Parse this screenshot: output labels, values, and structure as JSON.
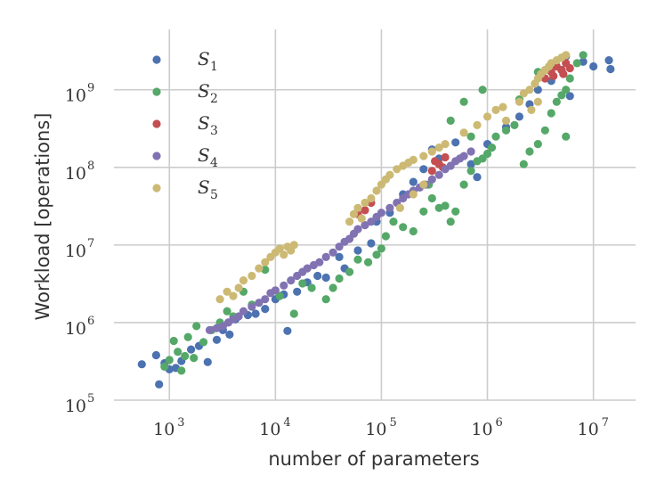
{
  "chart_data": {
    "type": "scatter",
    "xlabel": "number of parameters",
    "ylabel": "Workload [operations]",
    "xscale": "log",
    "yscale": "log",
    "xlim": [
      300,
      25000000
    ],
    "ylim": [
      100000,
      6000000000
    ],
    "x_ticks": [
      {
        "base": "10",
        "exp": "3"
      },
      {
        "base": "10",
        "exp": "4"
      },
      {
        "base": "10",
        "exp": "5"
      },
      {
        "base": "10",
        "exp": "6"
      },
      {
        "base": "10",
        "exp": "7"
      }
    ],
    "y_ticks": [
      {
        "base": "10",
        "exp": "5"
      },
      {
        "base": "10",
        "exp": "6"
      },
      {
        "base": "10",
        "exp": "7"
      },
      {
        "base": "10",
        "exp": "8"
      },
      {
        "base": "10",
        "exp": "9"
      }
    ],
    "grid": true,
    "legend_position": "top-left",
    "series": [
      {
        "name": "S",
        "sub": "1",
        "color": "#4c72b0",
        "points": [
          [
            550,
            290000
          ],
          [
            750,
            380000
          ],
          [
            800,
            160000
          ],
          [
            900,
            300000
          ],
          [
            1000,
            250000
          ],
          [
            1150,
            260000
          ],
          [
            1300,
            320000
          ],
          [
            1600,
            450000
          ],
          [
            1900,
            500000
          ],
          [
            2300,
            310000
          ],
          [
            2800,
            600000
          ],
          [
            3200,
            800000
          ],
          [
            3700,
            700000
          ],
          [
            4200,
            1100000
          ],
          [
            5500,
            1250000
          ],
          [
            6500,
            1300000
          ],
          [
            8000,
            1500000
          ],
          [
            10000,
            2000000
          ],
          [
            12000,
            2300000
          ],
          [
            13000,
            780000
          ],
          [
            16000,
            2500000
          ],
          [
            20000,
            3300000
          ],
          [
            25000,
            4000000
          ],
          [
            30000,
            3800000
          ],
          [
            40000,
            7000000
          ],
          [
            45000,
            5000000
          ],
          [
            60000,
            8500000
          ],
          [
            80000,
            10500000
          ],
          [
            90000,
            20000000
          ],
          [
            120000,
            26000000
          ],
          [
            160000,
            45000000
          ],
          [
            200000,
            65000000
          ],
          [
            250000,
            95000000
          ],
          [
            300000,
            170000000
          ],
          [
            350000,
            130000000
          ],
          [
            500000,
            210000000
          ],
          [
            700000,
            110000000
          ],
          [
            800000,
            75000000
          ],
          [
            1000000,
            200000000
          ],
          [
            1500000,
            330000000
          ],
          [
            2000000,
            450000000
          ],
          [
            2500000,
            650000000
          ],
          [
            3000000,
            1000000000
          ],
          [
            4000000,
            1300000000
          ],
          [
            5000000,
            1800000000
          ],
          [
            5500000,
            2700000000
          ],
          [
            6000000,
            830000000
          ],
          [
            8000000,
            2300000000
          ],
          [
            10000000,
            2000000000
          ],
          [
            14000000,
            2400000000
          ],
          [
            14500000,
            1850000000
          ]
        ]
      },
      {
        "name": "S",
        "sub": "2",
        "color": "#55a868",
        "points": [
          [
            900,
            270000
          ],
          [
            1000,
            330000
          ],
          [
            1100,
            580000
          ],
          [
            1200,
            420000
          ],
          [
            1300,
            240000
          ],
          [
            1400,
            370000
          ],
          [
            1500,
            650000
          ],
          [
            1700,
            350000
          ],
          [
            1800,
            900000
          ],
          [
            2100,
            560000
          ],
          [
            2500,
            800000
          ],
          [
            3000,
            1000000
          ],
          [
            3500,
            1400000
          ],
          [
            4000,
            1200000
          ],
          [
            5000,
            2500000
          ],
          [
            6000,
            1700000
          ],
          [
            8000,
            4800000
          ],
          [
            11000,
            2200000
          ],
          [
            15000,
            1300000
          ],
          [
            18000,
            3200000
          ],
          [
            22000,
            2800000
          ],
          [
            30000,
            2000000
          ],
          [
            35000,
            2800000
          ],
          [
            40000,
            3700000
          ],
          [
            50000,
            4500000
          ],
          [
            60000,
            6500000
          ],
          [
            75000,
            6000000
          ],
          [
            90000,
            7500000
          ],
          [
            100000,
            9000000
          ],
          [
            110000,
            13000000
          ],
          [
            130000,
            20000000
          ],
          [
            160000,
            17000000
          ],
          [
            200000,
            15000000
          ],
          [
            250000,
            27000000
          ],
          [
            280000,
            60000000
          ],
          [
            300000,
            40000000
          ],
          [
            350000,
            30000000
          ],
          [
            400000,
            32000000
          ],
          [
            450000,
            20000000
          ],
          [
            500000,
            27000000
          ],
          [
            600000,
            60000000
          ],
          [
            700000,
            90000000
          ],
          [
            800000,
            120000000
          ],
          [
            900000,
            130000000
          ],
          [
            1000000,
            150000000
          ],
          [
            1100000,
            180000000
          ],
          [
            1200000,
            250000000
          ],
          [
            1500000,
            300000000
          ],
          [
            1800000,
            350000000
          ],
          [
            2200000,
            110000000
          ],
          [
            2500000,
            160000000
          ],
          [
            3000000,
            200000000
          ],
          [
            3500000,
            300000000
          ],
          [
            4000000,
            500000000
          ],
          [
            4500000,
            700000000
          ],
          [
            5000000,
            850000000
          ],
          [
            5500000,
            1000000000
          ],
          [
            6000000,
            1400000000
          ],
          [
            7000000,
            2200000000
          ],
          [
            8000000,
            2800000000
          ],
          [
            5500000,
            250000000
          ],
          [
            900000,
            1000000000
          ],
          [
            600000,
            700000000
          ],
          [
            450000,
            400000000
          ],
          [
            700000,
            250000000
          ],
          [
            3000000,
            1700000000
          ],
          [
            2000000,
            750000000
          ]
        ]
      },
      {
        "name": "S",
        "sub": "3",
        "color": "#c44e52",
        "points": [
          [
            60000,
            25000000
          ],
          [
            70000,
            28000000
          ],
          [
            80000,
            35000000
          ],
          [
            300000,
            90000000
          ],
          [
            320000,
            120000000
          ],
          [
            350000,
            110000000
          ],
          [
            380000,
            100000000
          ],
          [
            400000,
            135000000
          ],
          [
            3500000,
            1400000000
          ],
          [
            4000000,
            1700000000
          ],
          [
            4200000,
            1500000000
          ],
          [
            4500000,
            2000000000
          ],
          [
            5000000,
            1800000000
          ],
          [
            5500000,
            2200000000
          ],
          [
            5200000,
            1600000000
          ],
          [
            6000000,
            1900000000
          ]
        ]
      },
      {
        "name": "S",
        "sub": "4",
        "color": "#8172b2",
        "points": [
          [
            2400,
            800000
          ],
          [
            2800,
            850000
          ],
          [
            3200,
            900000
          ],
          [
            3600,
            1000000
          ],
          [
            4000,
            1100000
          ],
          [
            4500,
            1200000
          ],
          [
            5000,
            1400000
          ],
          [
            6000,
            1600000
          ],
          [
            7000,
            1800000
          ],
          [
            8000,
            2000000
          ],
          [
            9000,
            2400000
          ],
          [
            10000,
            2600000
          ],
          [
            12000,
            3000000
          ],
          [
            14000,
            3500000
          ],
          [
            16000,
            4000000
          ],
          [
            18000,
            4500000
          ],
          [
            20000,
            5000000
          ],
          [
            23000,
            5500000
          ],
          [
            26000,
            6000000
          ],
          [
            30000,
            7000000
          ],
          [
            35000,
            8000000
          ],
          [
            40000,
            9500000
          ],
          [
            45000,
            11000000
          ],
          [
            50000,
            12000000
          ],
          [
            55000,
            14000000
          ],
          [
            60000,
            16000000
          ],
          [
            70000,
            18000000
          ],
          [
            80000,
            20000000
          ],
          [
            90000,
            23000000
          ],
          [
            100000,
            26000000
          ],
          [
            120000,
            30000000
          ],
          [
            140000,
            35000000
          ],
          [
            160000,
            40000000
          ],
          [
            180000,
            45000000
          ],
          [
            200000,
            50000000
          ],
          [
            230000,
            55000000
          ],
          [
            260000,
            60000000
          ],
          [
            300000,
            70000000
          ],
          [
            350000,
            80000000
          ],
          [
            400000,
            95000000
          ],
          [
            450000,
            105000000
          ],
          [
            500000,
            120000000
          ],
          [
            550000,
            130000000
          ],
          [
            600000,
            140000000
          ],
          [
            700000,
            160000000
          ]
        ]
      },
      {
        "name": "S",
        "sub": "5",
        "color": "#ccb974",
        "points": [
          [
            3000,
            2000000
          ],
          [
            3500,
            2500000
          ],
          [
            4000,
            2200000
          ],
          [
            4500,
            2800000
          ],
          [
            5000,
            3500000
          ],
          [
            6000,
            4000000
          ],
          [
            7000,
            5000000
          ],
          [
            8000,
            6000000
          ],
          [
            9000,
            7000000
          ],
          [
            10000,
            8000000
          ],
          [
            11000,
            9000000
          ],
          [
            12000,
            7500000
          ],
          [
            13000,
            9500000
          ],
          [
            14000,
            8500000
          ],
          [
            15000,
            10000000
          ],
          [
            50000,
            20000000
          ],
          [
            55000,
            25000000
          ],
          [
            60000,
            30000000
          ],
          [
            65000,
            22000000
          ],
          [
            70000,
            35000000
          ],
          [
            80000,
            40000000
          ],
          [
            90000,
            50000000
          ],
          [
            100000,
            60000000
          ],
          [
            110000,
            70000000
          ],
          [
            120000,
            80000000
          ],
          [
            140000,
            95000000
          ],
          [
            160000,
            105000000
          ],
          [
            180000,
            115000000
          ],
          [
            200000,
            125000000
          ],
          [
            250000,
            140000000
          ],
          [
            300000,
            160000000
          ],
          [
            350000,
            180000000
          ],
          [
            400000,
            200000000
          ],
          [
            150000,
            30000000
          ],
          [
            200000,
            45000000
          ],
          [
            250000,
            60000000
          ],
          [
            600000,
            280000000
          ],
          [
            800000,
            350000000
          ],
          [
            1000000,
            450000000
          ],
          [
            1200000,
            550000000
          ],
          [
            1400000,
            600000000
          ],
          [
            1500000,
            400000000
          ],
          [
            2000000,
            700000000
          ],
          [
            2200000,
            900000000
          ],
          [
            2500000,
            1000000000
          ],
          [
            2800000,
            1200000000
          ],
          [
            3000000,
            1400000000
          ],
          [
            3200000,
            1600000000
          ],
          [
            3500000,
            1800000000
          ],
          [
            3800000,
            2000000000
          ],
          [
            4000000,
            2200000000
          ],
          [
            4500000,
            2400000000
          ],
          [
            5000000,
            2600000000
          ],
          [
            5500000,
            2800000000
          ],
          [
            2600000,
            550000000
          ],
          [
            3000000,
            700000000
          ]
        ]
      }
    ]
  }
}
